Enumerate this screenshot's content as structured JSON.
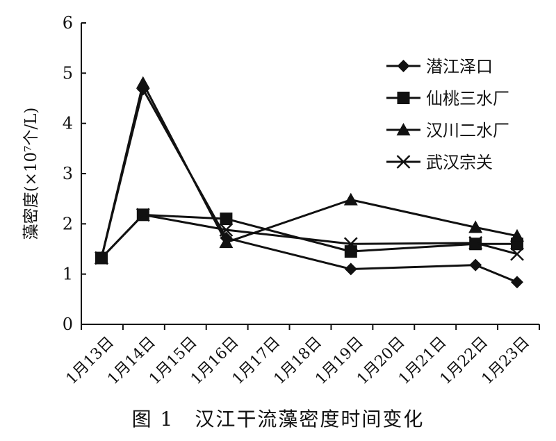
{
  "caption": "图 1　汉江干流藻密度时间变化",
  "chart_data": {
    "type": "line",
    "title": "",
    "xlabel": "",
    "ylabel": "藻密度(×10⁷个/L)",
    "ylim": [
      0,
      6
    ],
    "yticks": [
      "0",
      "1",
      "2",
      "3",
      "4",
      "5",
      "6"
    ],
    "categories": [
      "1月13日",
      "1月14日",
      "1月15日",
      "1月16日",
      "1月17日",
      "1月18日",
      "1月19日",
      "1月20日",
      "1月21日",
      "1月22日",
      "1月23日"
    ],
    "legend_position": "top-right",
    "grid": false,
    "series": [
      {
        "name": "潜江泽口",
        "marker": "diamond",
        "values": [
          1.32,
          4.68,
          null,
          1.72,
          null,
          null,
          1.1,
          null,
          null,
          1.18,
          0.84
        ]
      },
      {
        "name": "仙桃三水厂",
        "marker": "square",
        "values": [
          1.32,
          2.18,
          null,
          2.1,
          null,
          null,
          1.45,
          null,
          null,
          1.6,
          1.6
        ]
      },
      {
        "name": "汉川二水厂",
        "marker": "triangle",
        "values": [
          1.32,
          4.8,
          null,
          1.63,
          null,
          null,
          2.48,
          null,
          null,
          1.93,
          1.76
        ]
      },
      {
        "name": "武汉宗关",
        "marker": "x",
        "values": [
          1.32,
          2.18,
          null,
          1.88,
          null,
          null,
          1.6,
          null,
          null,
          1.62,
          1.4
        ]
      }
    ]
  }
}
